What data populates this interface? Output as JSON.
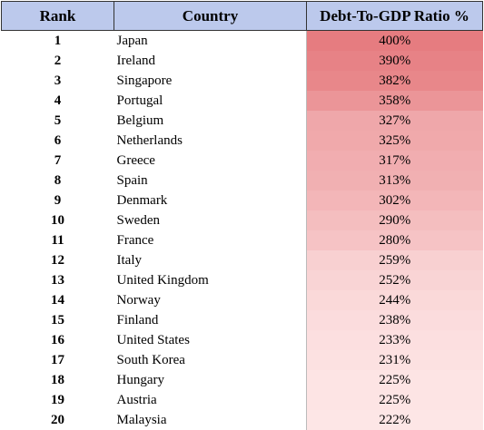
{
  "table": {
    "headers": {
      "rank": "Rank",
      "country": "Country",
      "ratio": "Debt-To-GDP Ratio %"
    },
    "rows": [
      {
        "rank": "1",
        "country": "Japan",
        "ratio": "400%",
        "value": 400
      },
      {
        "rank": "2",
        "country": "Ireland",
        "ratio": "390%",
        "value": 390
      },
      {
        "rank": "3",
        "country": "Singapore",
        "ratio": "382%",
        "value": 382
      },
      {
        "rank": "4",
        "country": "Portugal",
        "ratio": "358%",
        "value": 358
      },
      {
        "rank": "5",
        "country": "Belgium",
        "ratio": "327%",
        "value": 327
      },
      {
        "rank": "6",
        "country": "Netherlands",
        "ratio": "325%",
        "value": 325
      },
      {
        "rank": "7",
        "country": "Greece",
        "ratio": "317%",
        "value": 317
      },
      {
        "rank": "8",
        "country": "Spain",
        "ratio": "313%",
        "value": 313
      },
      {
        "rank": "9",
        "country": "Denmark",
        "ratio": "302%",
        "value": 302
      },
      {
        "rank": "10",
        "country": "Sweden",
        "ratio": "290%",
        "value": 290
      },
      {
        "rank": "11",
        "country": "France",
        "ratio": "280%",
        "value": 280
      },
      {
        "rank": "12",
        "country": "Italy",
        "ratio": "259%",
        "value": 259
      },
      {
        "rank": "13",
        "country": "United Kingdom",
        "ratio": "252%",
        "value": 252
      },
      {
        "rank": "14",
        "country": "Norway",
        "ratio": "244%",
        "value": 244
      },
      {
        "rank": "15",
        "country": "Finland",
        "ratio": "238%",
        "value": 238
      },
      {
        "rank": "16",
        "country": "United States",
        "ratio": "233%",
        "value": 233
      },
      {
        "rank": "17",
        "country": "South Korea",
        "ratio": "231%",
        "value": 231
      },
      {
        "rank": "18",
        "country": "Hungary",
        "ratio": "225%",
        "value": 225
      },
      {
        "rank": "19",
        "country": "Austria",
        "ratio": "225%",
        "value": 225
      },
      {
        "rank": "20",
        "country": "Malaysia",
        "ratio": "222%",
        "value": 222
      }
    ]
  },
  "colors": {
    "header_bg": "#bcc9ec",
    "heat_high": "#e67c80",
    "heat_low": "#fde6e6"
  }
}
